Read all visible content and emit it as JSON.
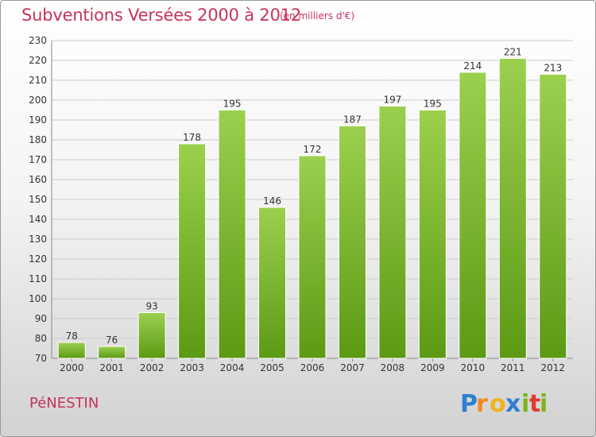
{
  "header": {
    "title": "Subventions Versées 2000 à 2012",
    "subtitle": "(en milliers d'€)"
  },
  "footer": {
    "commune": "PéNESTIN",
    "logo_text": "Proxiti"
  },
  "colors": {
    "title": "#c8325a",
    "bar_top": "#9bd04e",
    "bar_bottom": "#5c9a14",
    "grid": "#cccccc"
  },
  "chart_data": {
    "type": "bar",
    "categories": [
      "2000",
      "2001",
      "2002",
      "2003",
      "2004",
      "2005",
      "2006",
      "2007",
      "2008",
      "2009",
      "2010",
      "2011",
      "2012"
    ],
    "values": [
      78,
      76,
      93,
      178,
      195,
      146,
      172,
      187,
      197,
      195,
      214,
      221,
      213
    ],
    "ylim": [
      70,
      230
    ],
    "yticks": [
      70,
      80,
      90,
      100,
      110,
      120,
      130,
      140,
      150,
      160,
      170,
      180,
      190,
      200,
      210,
      220,
      230
    ],
    "grid": true,
    "data_labels": true
  }
}
